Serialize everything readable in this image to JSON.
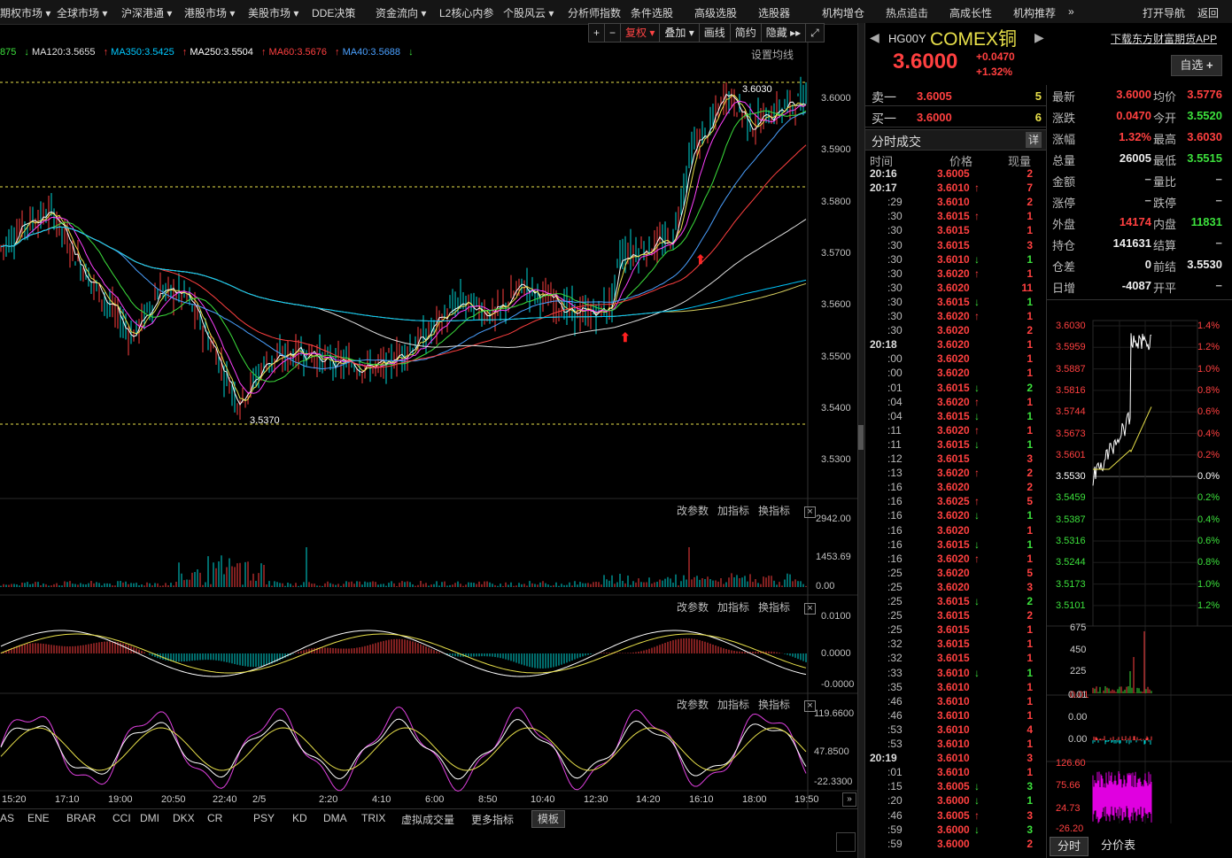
{
  "menu": [
    "期权市场",
    "全球市场",
    "沪深港通",
    "港股市场",
    "美股市场",
    "DDE决策",
    "资金流向",
    "L2核心内参",
    "个股风云",
    "分析师指数",
    "条件选股",
    "高级选股",
    "选股器",
    "机构增仓",
    "热点追击",
    "高成长性",
    "机构推荐"
  ],
  "menu_more": "»",
  "menu_right": [
    "打开导航",
    "返回"
  ],
  "toolbar": [
    "+",
    "−",
    "复权",
    "叠加",
    "画线",
    "简约",
    "隐藏"
  ],
  "ma_legend": [
    {
      "label": "875",
      "color": "#3ce03c",
      "arrow": "↓"
    },
    {
      "label": "MA120:3.5655",
      "color": "#e0e0e0",
      "arrow": "↑"
    },
    {
      "label": "MA350:3.5425",
      "color": "#00c8ff",
      "arrow": "↑"
    },
    {
      "label": "MA250:3.5504",
      "color": "#ffffff",
      "arrow": "↑"
    },
    {
      "label": "MA60:3.5676",
      "color": "#ff4040",
      "arrow": "↑"
    },
    {
      "label": "MA40:3.5688",
      "color": "#4aa0ff",
      "arrow": "↓"
    }
  ],
  "set_lines": "设置均线",
  "price_axis": [
    "3.6000",
    "3.5900",
    "3.5800",
    "3.5700",
    "3.5600",
    "3.5500",
    "3.5400",
    "3.5300"
  ],
  "high_label": "3.6030",
  "low_label": "3.5370",
  "vol_axis": [
    "2942.00",
    "1453.69",
    "0.00"
  ],
  "macd_axis": [
    "0.0100",
    "0.0000",
    "-0.0000"
  ],
  "kdj_axis": [
    "119.6600",
    "47.8500",
    "-22.3300"
  ],
  "panel_tools": [
    "改参数",
    "加指标",
    "换指标"
  ],
  "time_labels": [
    "15:20",
    "17:10",
    "19:00",
    "20:50",
    "22:40",
    "2/5",
    "2:20",
    "4:10",
    "6:00",
    "8:50",
    "10:40",
    "12:30",
    "14:20",
    "16:10",
    "18:00",
    "19:50"
  ],
  "indicators": [
    "AS",
    "ENE",
    "BRAR",
    "CCI",
    "DMI",
    "DKX",
    "CR",
    "PSY",
    "KD",
    "DMA",
    "TRIX",
    "虚拟成交量",
    "更多指标",
    "模板"
  ],
  "symbol": {
    "code": "HG00Y",
    "name": "COMEX铜",
    "price": "3.6000",
    "change": "+0.0470",
    "pct": "+1.32%",
    "watch": "自选",
    "app_link": "下载东方财富期货APP"
  },
  "orderbook": [
    {
      "label": "卖一",
      "price": "3.6005",
      "qty": "5"
    },
    {
      "label": "买一",
      "price": "3.6000",
      "qty": "6"
    }
  ],
  "trades_title": "分时成交",
  "trades_detail": "详",
  "trades_header": [
    "时间",
    "价格",
    "现量"
  ],
  "trades": [
    [
      "20:16",
      "3.6005",
      "2",
      "",
      "up"
    ],
    [
      "20:17",
      "3.6010",
      "7",
      "↑",
      "up"
    ],
    [
      ":29",
      "3.6010",
      "2",
      "",
      "up"
    ],
    [
      ":30",
      "3.6015",
      "1",
      "↑",
      "up"
    ],
    [
      ":30",
      "3.6015",
      "1",
      "",
      "up"
    ],
    [
      ":30",
      "3.6015",
      "3",
      "",
      "up"
    ],
    [
      ":30",
      "3.6010",
      "1",
      "↓",
      "dn"
    ],
    [
      ":30",
      "3.6020",
      "1",
      "↑",
      "up"
    ],
    [
      ":30",
      "3.6020",
      "11",
      "",
      "up"
    ],
    [
      ":30",
      "3.6015",
      "1",
      "↓",
      "dn"
    ],
    [
      ":30",
      "3.6020",
      "1",
      "↑",
      "up"
    ],
    [
      ":30",
      "3.6020",
      "2",
      "",
      "up"
    ],
    [
      "20:18",
      "3.6020",
      "1",
      "",
      "up"
    ],
    [
      ":00",
      "3.6020",
      "1",
      "",
      "up"
    ],
    [
      ":00",
      "3.6020",
      "1",
      "",
      "up"
    ],
    [
      ":01",
      "3.6015",
      "2",
      "↓",
      "dn"
    ],
    [
      ":04",
      "3.6020",
      "1",
      "↑",
      "up"
    ],
    [
      ":04",
      "3.6015",
      "1",
      "↓",
      "dn"
    ],
    [
      ":11",
      "3.6020",
      "1",
      "↑",
      "up"
    ],
    [
      ":11",
      "3.6015",
      "1",
      "↓",
      "dn"
    ],
    [
      ":12",
      "3.6015",
      "3",
      "",
      "up"
    ],
    [
      ":13",
      "3.6020",
      "2",
      "↑",
      "up"
    ],
    [
      ":16",
      "3.6020",
      "2",
      "",
      "up"
    ],
    [
      ":16",
      "3.6025",
      "5",
      "↑",
      "up"
    ],
    [
      ":16",
      "3.6020",
      "1",
      "↓",
      "dn"
    ],
    [
      ":16",
      "3.6020",
      "1",
      "",
      "up"
    ],
    [
      ":16",
      "3.6015",
      "1",
      "↓",
      "dn"
    ],
    [
      ":16",
      "3.6020",
      "1",
      "↑",
      "up"
    ],
    [
      ":25",
      "3.6020",
      "5",
      "",
      "up"
    ],
    [
      ":25",
      "3.6020",
      "3",
      "",
      "up"
    ],
    [
      ":25",
      "3.6015",
      "2",
      "↓",
      "dn"
    ],
    [
      ":25",
      "3.6015",
      "2",
      "",
      "up"
    ],
    [
      ":25",
      "3.6015",
      "1",
      "",
      "up"
    ],
    [
      ":32",
      "3.6015",
      "1",
      "",
      "up"
    ],
    [
      ":32",
      "3.6015",
      "1",
      "",
      "up"
    ],
    [
      ":33",
      "3.6010",
      "1",
      "↓",
      "dn"
    ],
    [
      ":35",
      "3.6010",
      "1",
      "",
      "up"
    ],
    [
      ":46",
      "3.6010",
      "1",
      "",
      "up"
    ],
    [
      ":46",
      "3.6010",
      "1",
      "",
      "up"
    ],
    [
      ":53",
      "3.6010",
      "4",
      "",
      "up"
    ],
    [
      ":53",
      "3.6010",
      "1",
      "",
      "up"
    ],
    [
      "20:19",
      "3.6010",
      "3",
      "",
      "up"
    ],
    [
      ":01",
      "3.6010",
      "1",
      "",
      "up"
    ],
    [
      ":15",
      "3.6005",
      "3",
      "↓",
      "dn"
    ],
    [
      ":20",
      "3.6000",
      "1",
      "↓",
      "dn"
    ],
    [
      ":46",
      "3.6005",
      "3",
      "↑",
      "up"
    ],
    [
      ":59",
      "3.6000",
      "3",
      "↓",
      "dn"
    ],
    [
      ":59",
      "3.6000",
      "2",
      "",
      "up"
    ]
  ],
  "quote": [
    {
      "k": "最新",
      "a": "3.6000",
      "ac": "up",
      "k2": "均价",
      "b": "3.5776",
      "bc": "up"
    },
    {
      "k": "涨跌",
      "a": "0.0470",
      "ac": "up",
      "k2": "今开",
      "b": "3.5520",
      "bc": "dn"
    },
    {
      "k": "涨幅",
      "a": "1.32%",
      "ac": "up",
      "k2": "最高",
      "b": "3.6030",
      "bc": "up"
    },
    {
      "k": "总量",
      "a": "26005",
      "ac": "wh",
      "k2": "最低",
      "b": "3.5515",
      "bc": "dn"
    },
    {
      "k": "金额",
      "a": "−",
      "ac": "gy",
      "k2": "量比",
      "b": "−",
      "bc": "gy"
    },
    {
      "k": "涨停",
      "a": "−",
      "ac": "gy",
      "k2": "跌停",
      "b": "−",
      "bc": "gy"
    },
    {
      "k": "外盘",
      "a": "14174",
      "ac": "up",
      "k2": "内盘",
      "b": "11831",
      "bc": "dn"
    },
    {
      "k": "持仓",
      "a": "141631",
      "ac": "wh",
      "k2": "结算",
      "b": "−",
      "bc": "gy"
    },
    {
      "k": "仓差",
      "a": "0",
      "ac": "wh",
      "k2": "前结",
      "b": "3.5530",
      "bc": "wh"
    },
    {
      "k": "日增",
      "a": "-4087",
      "ac": "wh",
      "k2": "开平",
      "b": "−",
      "bc": "gy"
    }
  ],
  "mini_price": [
    "3.6030",
    "3.5959",
    "3.5887",
    "3.5816",
    "3.5744",
    "3.5673",
    "3.5601",
    "3.5530",
    "3.5459",
    "3.5387",
    "3.5316",
    "3.5244",
    "3.5173",
    "3.5101"
  ],
  "mini_pct": [
    "1.4%",
    "1.2%",
    "1.0%",
    "0.8%",
    "0.6%",
    "0.4%",
    "0.2%",
    "0.0%",
    "0.2%",
    "0.4%",
    "0.6%",
    "0.8%",
    "1.0%",
    "1.2%"
  ],
  "mini_vol": [
    "675",
    "450",
    "225",
    "0.01"
  ],
  "mini_macd": [
    "0.01",
    "0.00",
    "0.00"
  ],
  "mini_kdj": [
    "126.60",
    "75.66",
    "24.73",
    "-26.20"
  ],
  "mini_tabs": [
    "分时",
    "分价表"
  ]
}
